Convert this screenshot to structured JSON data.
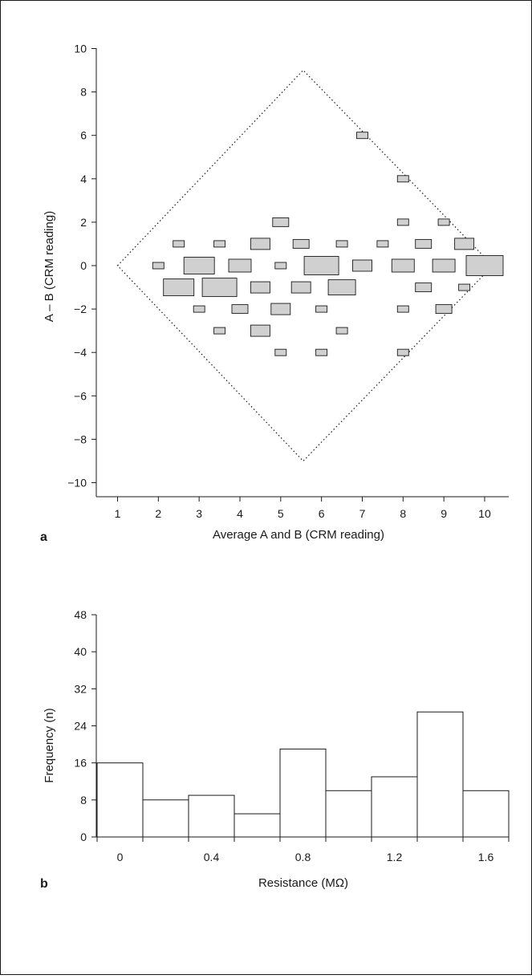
{
  "panel_a_label": "a",
  "panel_b_label": "b",
  "chart_data": [
    {
      "type": "scatter",
      "variant": "bubble",
      "title": "",
      "xlabel": "Average A and B (CRM reading)",
      "ylabel": "A – B (CRM reading)",
      "xlim": [
        0.5,
        10.5
      ],
      "ylim": [
        -10.5,
        10
      ],
      "xticks": [
        1,
        2,
        3,
        4,
        5,
        6,
        7,
        8,
        9,
        10
      ],
      "yticks": [
        10,
        8,
        6,
        4,
        2,
        0,
        -2,
        -4,
        -6,
        -8,
        -10
      ],
      "ytick_labels": [
        "10",
        "8",
        "6",
        "4",
        "2",
        "0",
        "−2",
        "−4",
        "−6",
        "−8",
        "−10"
      ],
      "grid": false,
      "reference_region": {
        "shape": "diamond",
        "style": "dotted",
        "vertices": [
          [
            1,
            0
          ],
          [
            5.55,
            9
          ],
          [
            10.2,
            0
          ],
          [
            5.55,
            -9
          ]
        ]
      },
      "points": [
        {
          "x": 7.0,
          "y": 6,
          "size": 1
        },
        {
          "x": 8.0,
          "y": 4,
          "size": 1
        },
        {
          "x": 5.0,
          "y": 2,
          "size": 2
        },
        {
          "x": 8.0,
          "y": 2,
          "size": 1
        },
        {
          "x": 9.0,
          "y": 2,
          "size": 1
        },
        {
          "x": 2.5,
          "y": 1,
          "size": 1
        },
        {
          "x": 3.5,
          "y": 1,
          "size": 1
        },
        {
          "x": 4.5,
          "y": 1,
          "size": 3
        },
        {
          "x": 5.5,
          "y": 1,
          "size": 2
        },
        {
          "x": 6.5,
          "y": 1,
          "size": 1
        },
        {
          "x": 7.5,
          "y": 1,
          "size": 1
        },
        {
          "x": 8.5,
          "y": 1,
          "size": 2
        },
        {
          "x": 9.5,
          "y": 1,
          "size": 3
        },
        {
          "x": 2.0,
          "y": 0,
          "size": 1
        },
        {
          "x": 3.0,
          "y": 0,
          "size": 6
        },
        {
          "x": 4.0,
          "y": 0,
          "size": 4
        },
        {
          "x": 5.0,
          "y": 0,
          "size": 1
        },
        {
          "x": 6.0,
          "y": 0,
          "size": 7
        },
        {
          "x": 7.0,
          "y": 0,
          "size": 3
        },
        {
          "x": 8.0,
          "y": 0,
          "size": 4
        },
        {
          "x": 9.0,
          "y": 0,
          "size": 4
        },
        {
          "x": 10.0,
          "y": 0,
          "size": 8
        },
        {
          "x": 2.5,
          "y": -1,
          "size": 6
        },
        {
          "x": 3.5,
          "y": -1,
          "size": 7
        },
        {
          "x": 4.5,
          "y": -1,
          "size": 3
        },
        {
          "x": 5.5,
          "y": -1,
          "size": 3
        },
        {
          "x": 6.5,
          "y": -1,
          "size": 5
        },
        {
          "x": 8.5,
          "y": -1,
          "size": 2
        },
        {
          "x": 9.5,
          "y": -1,
          "size": 1
        },
        {
          "x": 3.0,
          "y": -2,
          "size": 1
        },
        {
          "x": 4.0,
          "y": -2,
          "size": 2
        },
        {
          "x": 5.0,
          "y": -2,
          "size": 3
        },
        {
          "x": 6.0,
          "y": -2,
          "size": 1
        },
        {
          "x": 8.0,
          "y": -2,
          "size": 1
        },
        {
          "x": 9.0,
          "y": -2,
          "size": 2
        },
        {
          "x": 3.5,
          "y": -3,
          "size": 1
        },
        {
          "x": 4.5,
          "y": -3,
          "size": 3
        },
        {
          "x": 6.5,
          "y": -3,
          "size": 1
        },
        {
          "x": 5.0,
          "y": -4,
          "size": 1
        },
        {
          "x": 6.0,
          "y": -4,
          "size": 1
        },
        {
          "x": 8.0,
          "y": -4,
          "size": 1
        }
      ]
    },
    {
      "type": "bar",
      "variant": "histogram",
      "title": "",
      "xlabel": "Resistance (MΩ)",
      "ylabel": "Frequency (n)",
      "bin_edges": [
        -0.1,
        0.1,
        0.3,
        0.5,
        0.7,
        0.9,
        1.1,
        1.3,
        1.5,
        1.7
      ],
      "values": [
        16,
        8,
        9,
        5,
        19,
        10,
        13,
        27,
        10
      ],
      "xlim": [
        -0.1,
        1.7
      ],
      "ylim": [
        0,
        48
      ],
      "xticks": [
        0,
        0.4,
        0.8,
        1.2,
        1.6
      ],
      "xtick_labels": [
        "0",
        "0.4",
        "0.8",
        "1.2",
        "1.6"
      ],
      "yticks": [
        0,
        8,
        16,
        24,
        32,
        40,
        48
      ],
      "grid": false
    }
  ]
}
